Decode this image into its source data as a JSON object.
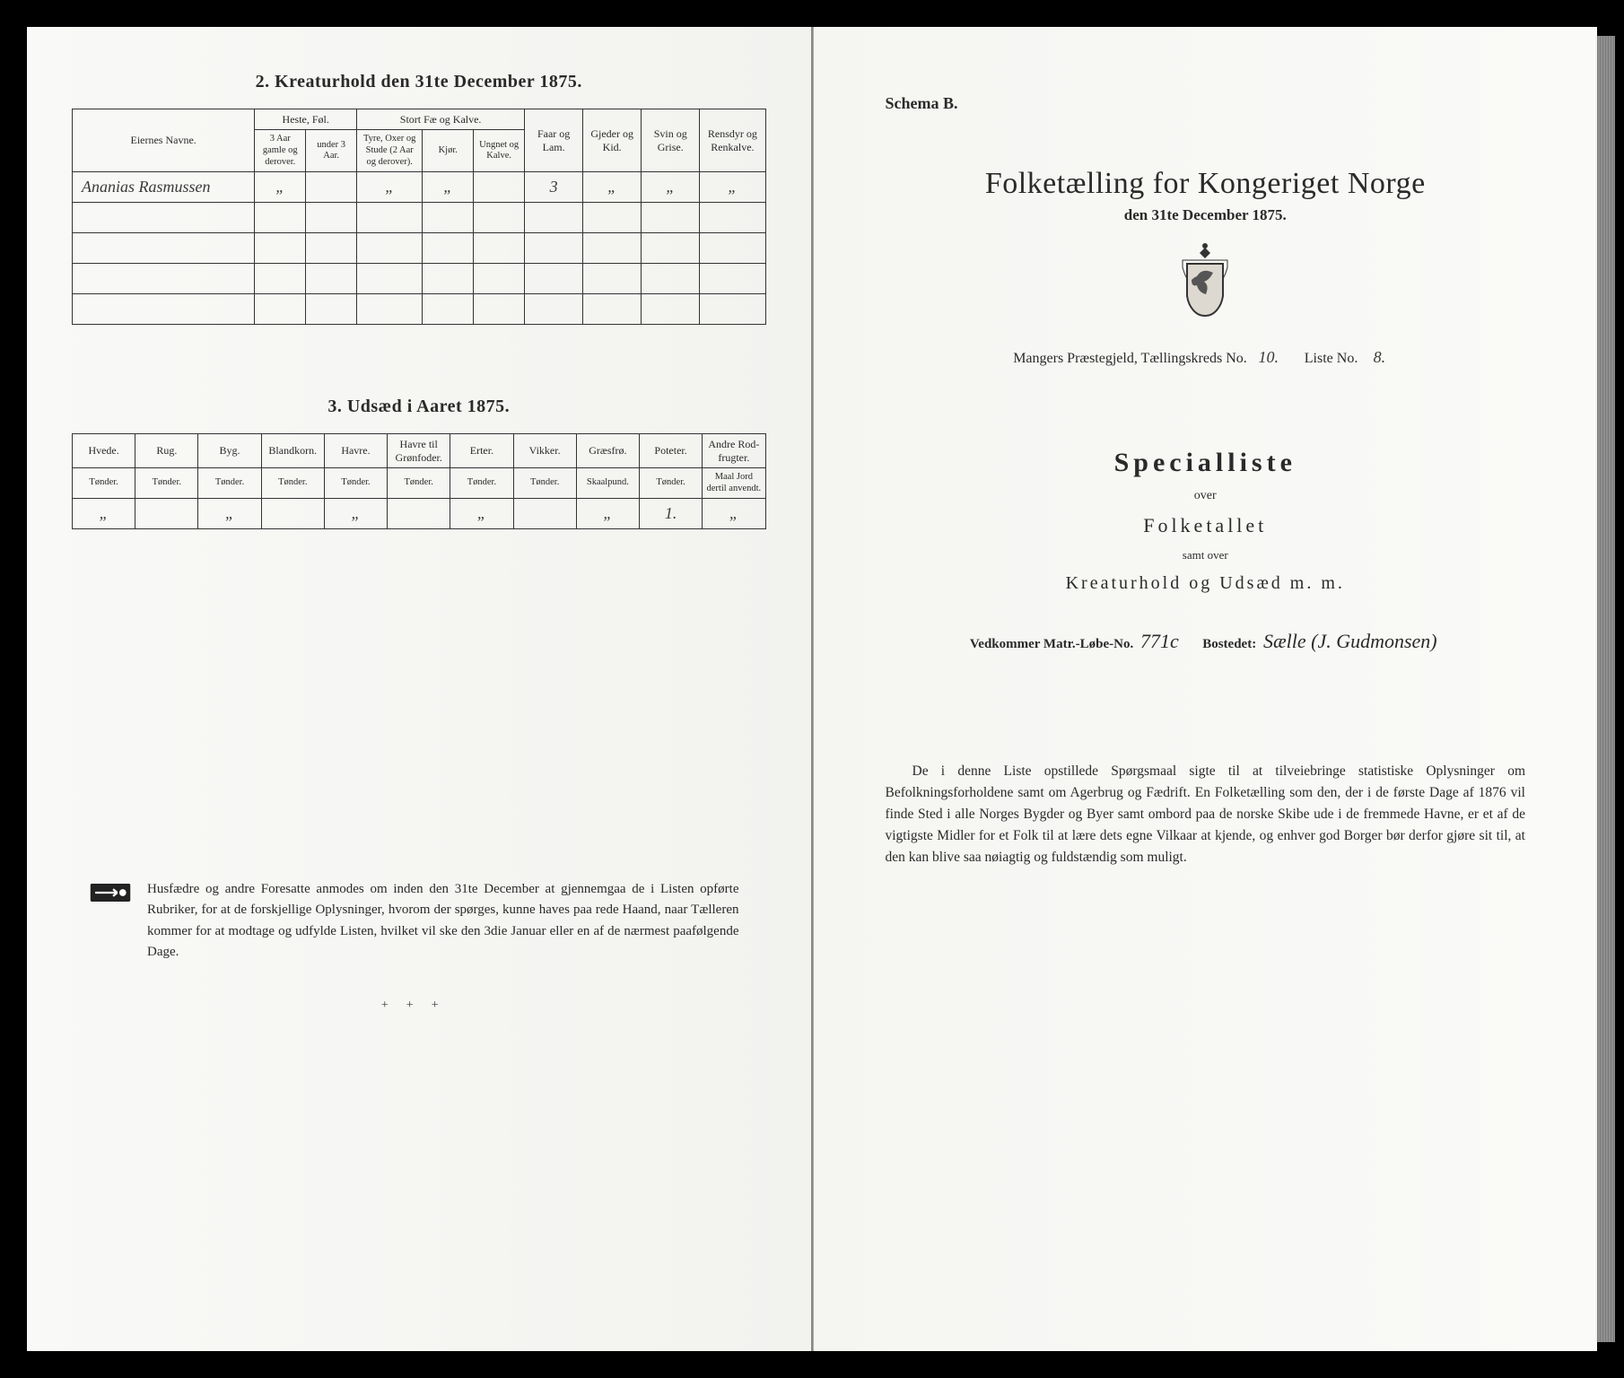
{
  "left": {
    "section2": {
      "title": "2.  Kreaturhold den 31te December 1875.",
      "headers": {
        "col_names": "Eiernes Navne.",
        "grp_horse": "Heste, Føl.",
        "grp_cattle": "Stort Fæ og Kalve.",
        "faar": "Faar og Lam.",
        "gjeder": "Gjeder og Kid.",
        "svin": "Svin og Grise.",
        "rens": "Rensdyr og Renkalve.",
        "horse_a": "3 Aar gamle og derover.",
        "horse_b": "under 3 Aar.",
        "cattle_a": "Tyre, Oxer og Stude (2 Aar og derover).",
        "cattle_b": "Kjør.",
        "cattle_c": "Ungnet og Kalve."
      },
      "rows": [
        {
          "name": "Ananias Rasmussen",
          "h1": "„",
          "h2": "",
          "c1": "„",
          "c2": "„",
          "c3": "",
          "faar": "3",
          "gj": "„",
          "sv": "„",
          "re": "„"
        },
        {
          "name": "",
          "h1": "",
          "h2": "",
          "c1": "",
          "c2": "",
          "c3": "",
          "faar": "",
          "gj": "",
          "sv": "",
          "re": ""
        },
        {
          "name": "",
          "h1": "",
          "h2": "",
          "c1": "",
          "c2": "",
          "c3": "",
          "faar": "",
          "gj": "",
          "sv": "",
          "re": ""
        },
        {
          "name": "",
          "h1": "",
          "h2": "",
          "c1": "",
          "c2": "",
          "c3": "",
          "faar": "",
          "gj": "",
          "sv": "",
          "re": ""
        },
        {
          "name": "",
          "h1": "",
          "h2": "",
          "c1": "",
          "c2": "",
          "c3": "",
          "faar": "",
          "gj": "",
          "sv": "",
          "re": ""
        }
      ]
    },
    "section3": {
      "title": "3.  Udsæd i Aaret 1875.",
      "cols": [
        {
          "h": "Hvede.",
          "u": "Tønder."
        },
        {
          "h": "Rug.",
          "u": "Tønder."
        },
        {
          "h": "Byg.",
          "u": "Tønder."
        },
        {
          "h": "Blandkorn.",
          "u": "Tønder."
        },
        {
          "h": "Havre.",
          "u": "Tønder."
        },
        {
          "h": "Havre til Grønfoder.",
          "u": "Tønder."
        },
        {
          "h": "Erter.",
          "u": "Tønder."
        },
        {
          "h": "Vikker.",
          "u": "Tønder."
        },
        {
          "h": "Græsfrø.",
          "u": "Skaalpund."
        },
        {
          "h": "Poteter.",
          "u": "Tønder."
        },
        {
          "h": "Andre Rod-frugter.",
          "u": "Maal Jord dertil anvendt."
        }
      ],
      "row": [
        "„",
        "",
        "„",
        "",
        "„",
        "",
        "„",
        "",
        "„",
        "1.",
        "„"
      ]
    },
    "note": "Husfædre og andre Foresatte anmodes om inden den 31te December at gjennemgaa de i Listen opførte Rubriker, for at de forskjellige Oplysninger, hvorom der spørges, kunne haves paa rede Haand, naar Tælleren kommer for at modtage og udfylde Listen, hvilket vil ske den 3die Januar eller en af de nærmest paafølgende Dage.",
    "crosses": "+++"
  },
  "right": {
    "schema": "Schema B.",
    "title": "Folketælling for Kongeriget Norge",
    "subtitle": "den 31te December 1875.",
    "pr_line_a": "Mangers Præstegjeld,  Tællingskreds No.",
    "pr_kreds": "10.",
    "pr_line_b": "Liste No.",
    "pr_liste": "8.",
    "spec": "Specialliste",
    "over": "over",
    "folketallet": "Folketallet",
    "samt": "samt over",
    "kreat": "Kreaturhold og Udsæd m. m.",
    "vedk_a": "Vedkommer Matr.-Løbe-No.",
    "vedk_no": "771c",
    "vedk_b": "Bostedet:",
    "vedk_place": "Sælle (J. Gudmonsen)",
    "bottom": "De i denne Liste opstillede Spørgsmaal sigte til at tilveiebringe statistiske Oplysninger om Befolkningsforholdene samt om Agerbrug og Fædrift.  En Folketælling som den, der i de første Dage af 1876 vil finde Sted i alle Norges Bygder og Byer samt ombord paa de norske Skibe ude i de fremmede Havne, er et af de vigtigste Midler for et Folk til at lære dets egne Vilkaar at kjende, og enhver god Borger bør derfor gjøre sit til, at den kan blive saa nøiagtig og fuldstændig som muligt."
  },
  "colors": {
    "text": "#2a2a2a",
    "border": "#333333",
    "page_bg": "#f8f8f5",
    "frame_bg": "#000000"
  }
}
